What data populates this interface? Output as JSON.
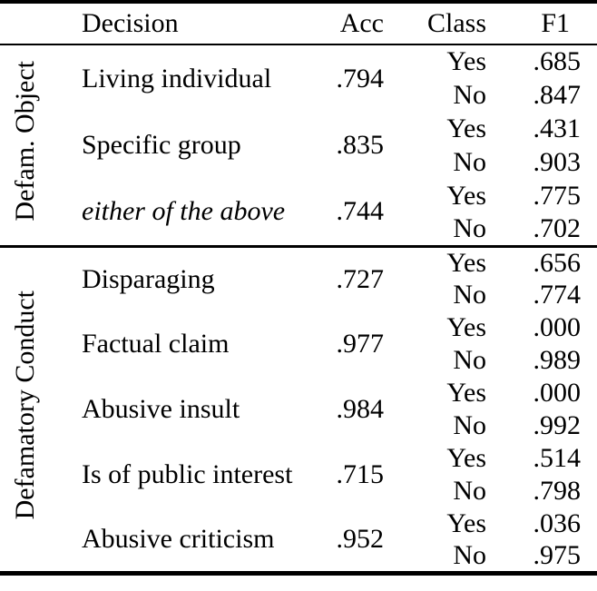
{
  "colors": {
    "text": "#000000",
    "background": "#ffffff"
  },
  "table": {
    "headers": {
      "decision": "Decision",
      "acc": "Acc",
      "class": "Class",
      "f1": "F1"
    },
    "groups": [
      {
        "label": "Defam. Object",
        "rows": [
          {
            "decision": "Living individual",
            "italic": false,
            "acc": ".794",
            "classes": [
              {
                "label": "Yes",
                "f1": ".685"
              },
              {
                "label": "No",
                "f1": ".847"
              }
            ]
          },
          {
            "decision": "Specific group",
            "italic": false,
            "acc": ".835",
            "classes": [
              {
                "label": "Yes",
                "f1": ".431"
              },
              {
                "label": "No",
                "f1": ".903"
              }
            ]
          },
          {
            "decision": "either of the above",
            "italic": true,
            "acc": ".744",
            "classes": [
              {
                "label": "Yes",
                "f1": ".775"
              },
              {
                "label": "No",
                "f1": ".702"
              }
            ]
          }
        ]
      },
      {
        "label": "Defamatory Conduct",
        "rows": [
          {
            "decision": "Disparaging",
            "italic": false,
            "acc": ".727",
            "classes": [
              {
                "label": "Yes",
                "f1": ".656"
              },
              {
                "label": "No",
                "f1": ".774"
              }
            ]
          },
          {
            "decision": "Factual claim",
            "italic": false,
            "acc": ".977",
            "classes": [
              {
                "label": "Yes",
                "f1": ".000"
              },
              {
                "label": "No",
                "f1": ".989"
              }
            ]
          },
          {
            "decision": "Abusive insult",
            "italic": false,
            "acc": ".984",
            "classes": [
              {
                "label": "Yes",
                "f1": ".000"
              },
              {
                "label": "No",
                "f1": ".992"
              }
            ]
          },
          {
            "decision": "Is of public interest",
            "italic": false,
            "acc": ".715",
            "classes": [
              {
                "label": "Yes",
                "f1": ".514"
              },
              {
                "label": "No",
                "f1": ".798"
              }
            ]
          },
          {
            "decision": "Abusive criticism",
            "italic": false,
            "acc": ".952",
            "classes": [
              {
                "label": "Yes",
                "f1": ".036"
              },
              {
                "label": "No",
                "f1": ".975"
              }
            ]
          }
        ]
      }
    ]
  }
}
